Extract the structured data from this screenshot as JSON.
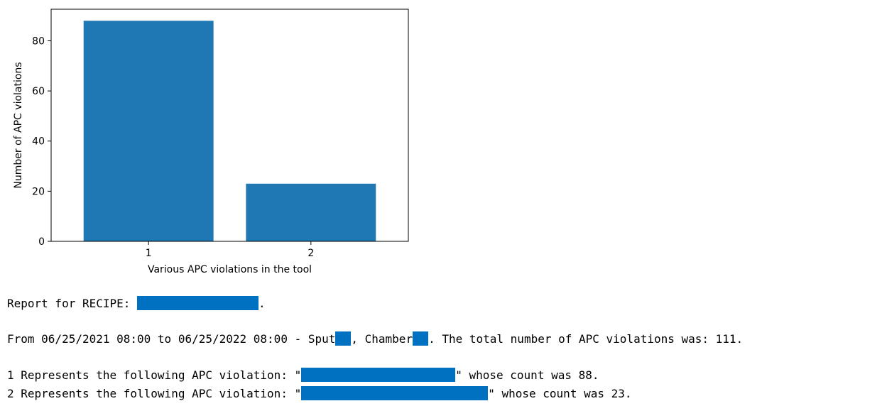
{
  "chart_data": {
    "type": "bar",
    "categories": [
      "1",
      "2"
    ],
    "values": [
      88,
      23
    ],
    "xlabel": "Various APC violations in the tool",
    "ylabel": "Number of APC violations",
    "ylim": [
      0,
      92.6
    ],
    "yticks": [
      0,
      20,
      40,
      60,
      80
    ],
    "grid": false,
    "bar_color": "#1f77b4"
  },
  "report": {
    "recipe_prefix": "Report for RECIPE: ",
    "recipe_suffix": ".",
    "period_prefix": "From 06/25/2021 08:00 to 06/25/2022 08:00 - Sput",
    "chamber_label": ", Chamber",
    "total_text": ". The total number of APC violations was: 111.",
    "line1_prefix": "1 Represents the following APC violation: \"",
    "line1_suffix": "\" whose count was 88.",
    "line2_prefix": "2 Represents the following APC violation: \"",
    "line2_suffix": "\" whose count was 23.",
    "redaction_color": "#0070c0"
  }
}
